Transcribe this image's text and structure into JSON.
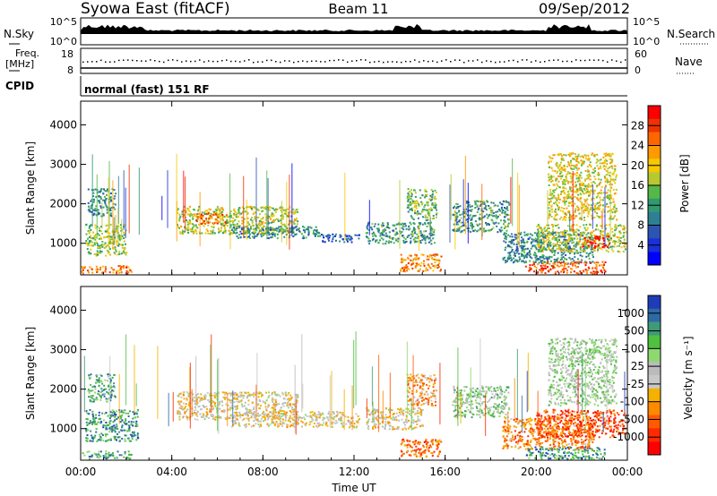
{
  "header": {
    "title": "Syowa East (fitACF)",
    "beam": "Beam 11",
    "date": "09/Sep/2012"
  },
  "noise_panel": {
    "left_label": "N.Sky",
    "left_ticks": [
      "10^5",
      "10^0"
    ],
    "right_label": "N.Search",
    "right_ticks": [
      "10^5",
      "10^0"
    ]
  },
  "freq_panel": {
    "left_label_line1": "Freq.",
    "left_label_line2": "[MHz]",
    "left_ticks": [
      "18",
      "8"
    ],
    "right_label": "Nave",
    "right_ticks": [
      "60",
      "0"
    ],
    "cpid_label": "CPID",
    "mode_text": "normal (fast) 151 RF"
  },
  "chart_data": [
    {
      "type": "heatmap",
      "panel": "power",
      "xlabel": "",
      "ylabel": "Slant Range [km]",
      "x_ticks": [
        "00:00",
        "04:00",
        "08:00",
        "12:00",
        "16:00",
        "20:00",
        "00:00"
      ],
      "y_ticks": [
        1000,
        2000,
        3000,
        4000
      ],
      "xlim": [
        0,
        24
      ],
      "ylim": [
        200,
        4600
      ],
      "colorbar": {
        "label": "Power [dB]",
        "ticks": [
          "28",
          "24",
          "20",
          "16",
          "12",
          "8",
          "4"
        ],
        "colors": [
          "#ff0000",
          "#ee3300",
          "#ff6600",
          "#ff9a00",
          "#f5c800",
          "#b8c830",
          "#55b848",
          "#2e9a6e",
          "#2f7f94",
          "#2b55b0",
          "#1a30d8",
          "#0000ff"
        ]
      },
      "regions": [
        {
          "t0": 0.0,
          "t1": 2.2,
          "r0": 250,
          "r1": 450,
          "level": 0.8
        },
        {
          "t0": 0.2,
          "t1": 2.0,
          "r0": 700,
          "r1": 1500,
          "level": 0.5
        },
        {
          "t0": 0.3,
          "t1": 1.5,
          "r0": 1700,
          "r1": 2400,
          "level": 0.3
        },
        {
          "t0": 4.2,
          "t1": 9.5,
          "r0": 1250,
          "r1": 1950,
          "level": 0.55
        },
        {
          "t0": 5.0,
          "t1": 6.5,
          "r0": 1500,
          "r1": 1800,
          "level": 0.8
        },
        {
          "t0": 6.5,
          "t1": 10.5,
          "r0": 1150,
          "r1": 1450,
          "level": 0.3
        },
        {
          "t0": 10.5,
          "t1": 12.2,
          "r0": 1050,
          "r1": 1250,
          "level": 0.2
        },
        {
          "t0": 12.5,
          "t1": 15.5,
          "r0": 1000,
          "r1": 1550,
          "level": 0.35
        },
        {
          "t0": 14.0,
          "t1": 15.8,
          "r0": 300,
          "r1": 750,
          "level": 0.75
        },
        {
          "t0": 14.3,
          "t1": 15.6,
          "r0": 1600,
          "r1": 2400,
          "level": 0.45
        },
        {
          "t0": 16.3,
          "t1": 18.8,
          "r0": 1300,
          "r1": 2100,
          "level": 0.35
        },
        {
          "t0": 18.5,
          "t1": 22.5,
          "r0": 500,
          "r1": 1300,
          "level": 0.3
        },
        {
          "t0": 19.5,
          "t1": 23.0,
          "r0": 250,
          "r1": 550,
          "level": 0.85
        },
        {
          "t0": 20.0,
          "t1": 23.9,
          "r0": 800,
          "r1": 1500,
          "level": 0.55
        },
        {
          "t0": 22.0,
          "t1": 23.2,
          "r0": 900,
          "r1": 1200,
          "level": 0.95
        },
        {
          "t0": 20.5,
          "t1": 23.5,
          "r0": 1600,
          "r1": 3300,
          "level": 0.6
        }
      ]
    },
    {
      "type": "heatmap",
      "panel": "velocity",
      "xlabel": "Time UT",
      "ylabel": "Slant Range [km]",
      "x_ticks": [
        "00:00",
        "04:00",
        "08:00",
        "12:00",
        "16:00",
        "20:00",
        "00:00"
      ],
      "y_ticks": [
        1000,
        2000,
        3000,
        4000
      ],
      "xlim": [
        0,
        24
      ],
      "ylim": [
        200,
        4600
      ],
      "colorbar": {
        "label": "Velocity [m s⁻¹]",
        "ticks": [
          "1000",
          "500",
          "100",
          "25",
          "-25",
          "-100",
          "-500",
          "-1000"
        ],
        "colors": [
          "#1e3cb8",
          "#2d6aa5",
          "#3f9a78",
          "#50c040",
          "#8ed870",
          "#bbbbbb",
          "#c8c8c8",
          "#f5b000",
          "#ff8a00",
          "#ff5a00",
          "#ff2a00",
          "#ff0000"
        ]
      },
      "regions": [
        {
          "t0": 0.0,
          "t1": 2.2,
          "r0": 250,
          "r1": 450,
          "level": 0.8
        },
        {
          "t0": 0.2,
          "t1": 2.5,
          "r0": 700,
          "r1": 1500,
          "level": 0.82
        },
        {
          "t0": 0.3,
          "t1": 1.5,
          "r0": 1700,
          "r1": 2400,
          "level": 0.75
        },
        {
          "t0": 4.2,
          "t1": 9.5,
          "r0": 1250,
          "r1": 1950,
          "level": 0.45
        },
        {
          "t0": 6.5,
          "t1": 12.2,
          "r0": 1050,
          "r1": 1450,
          "level": 0.45
        },
        {
          "t0": 12.5,
          "t1": 15.0,
          "r0": 1000,
          "r1": 1550,
          "level": 0.45
        },
        {
          "t0": 14.0,
          "t1": 15.8,
          "r0": 300,
          "r1": 750,
          "level": 0.2
        },
        {
          "t0": 14.3,
          "t1": 15.6,
          "r0": 1600,
          "r1": 2400,
          "level": 0.3
        },
        {
          "t0": 16.3,
          "t1": 18.8,
          "r0": 1300,
          "r1": 2100,
          "level": 0.65
        },
        {
          "t0": 18.5,
          "t1": 22.5,
          "r0": 500,
          "r1": 1300,
          "level": 0.25
        },
        {
          "t0": 19.5,
          "t1": 23.0,
          "r0": 250,
          "r1": 550,
          "level": 0.82
        },
        {
          "t0": 20.0,
          "t1": 23.9,
          "r0": 800,
          "r1": 1500,
          "level": 0.15
        },
        {
          "t0": 20.5,
          "t1": 23.5,
          "r0": 1600,
          "r1": 3300,
          "level": 0.6
        }
      ]
    }
  ]
}
